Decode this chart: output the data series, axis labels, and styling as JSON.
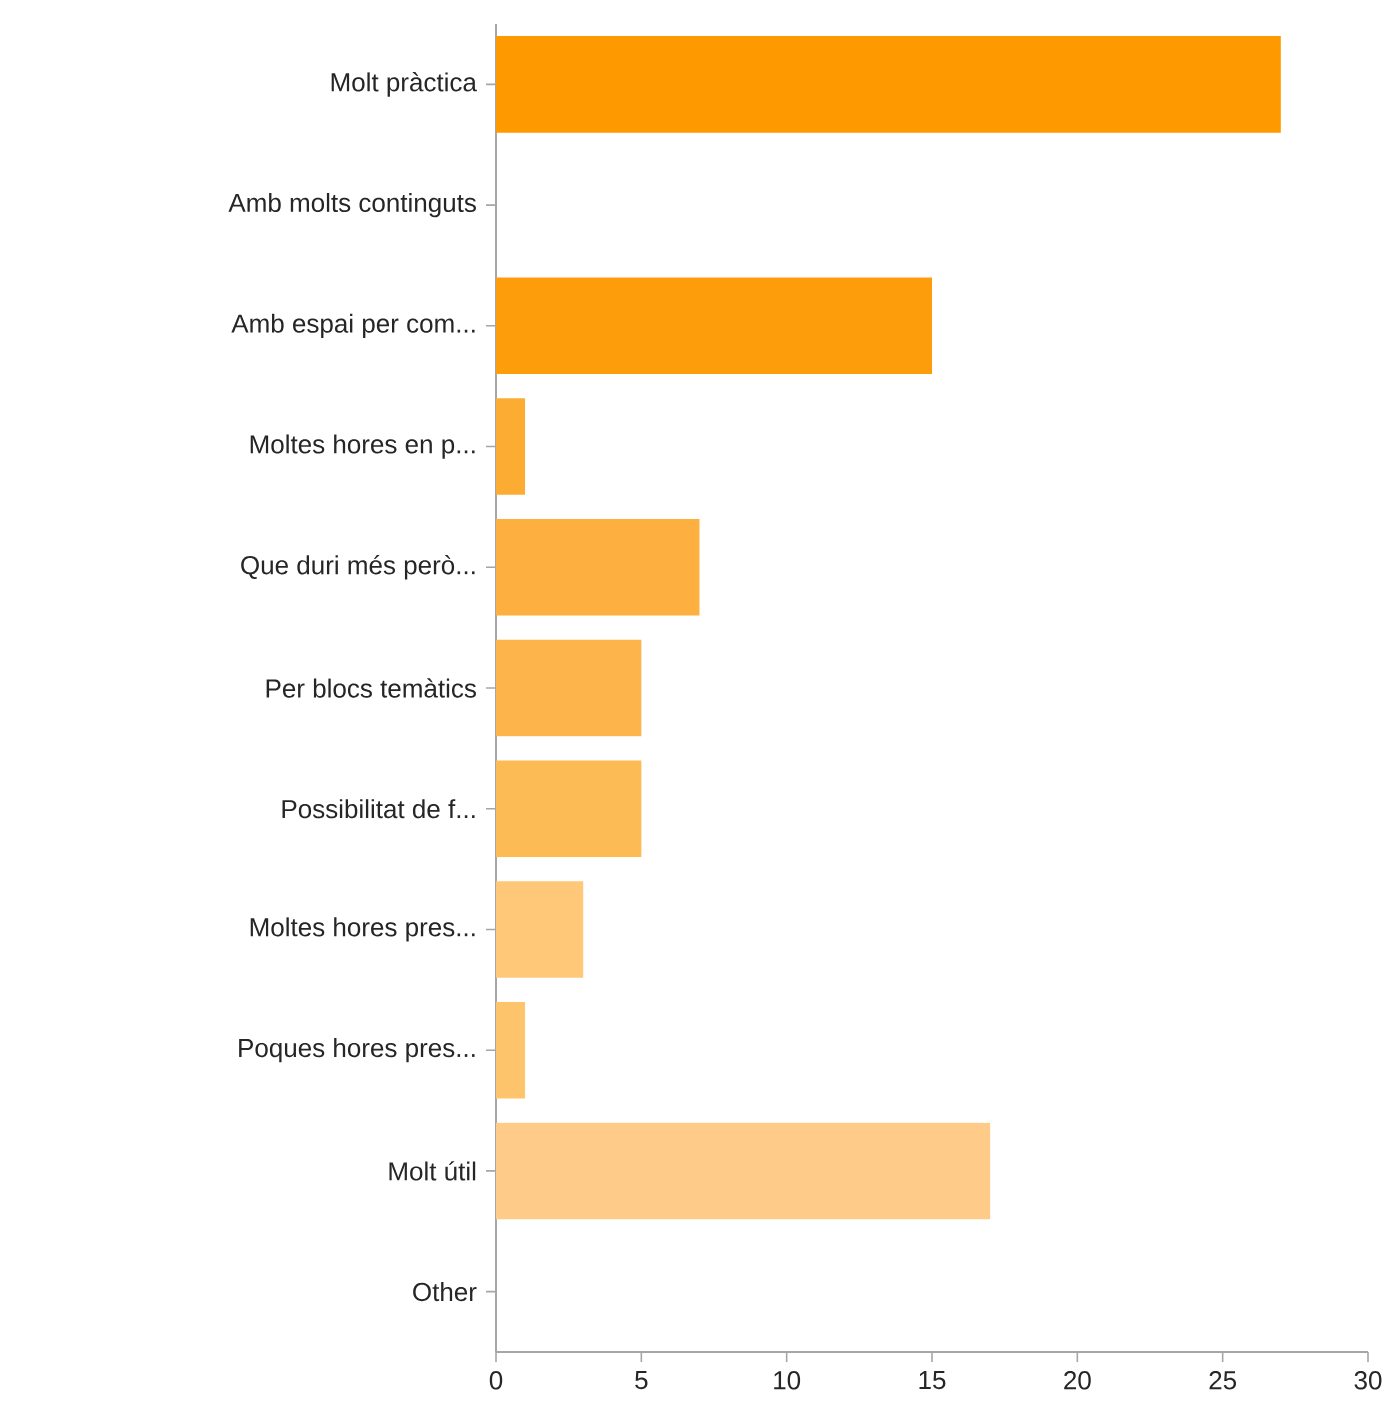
{
  "chart_data": {
    "type": "bar",
    "orientation": "horizontal",
    "categories": [
      "Molt pràctica",
      "Amb molts continguts",
      "Amb espai per com...",
      "Moltes hores en p...",
      "Que duri més però...",
      "Per blocs temàtics",
      "Possibilitat de f...",
      "Moltes hores pres...",
      "Poques hores pres...",
      "Molt útil",
      "Other"
    ],
    "values": [
      27,
      0,
      15,
      1,
      7,
      5,
      5,
      3,
      1,
      17,
      0
    ],
    "colors": [
      "#ff9900",
      "#ff9900",
      "#fe9d0c",
      "#fdac33",
      "#fdb03f",
      "#fdb54b",
      "#fdbb56",
      "#fec878",
      "#fdc46b",
      "#fecc88",
      "#fecc88"
    ],
    "xlim": [
      0,
      30
    ],
    "xticks": [
      0,
      5,
      10,
      15,
      20,
      25,
      30
    ],
    "grid": false
  }
}
